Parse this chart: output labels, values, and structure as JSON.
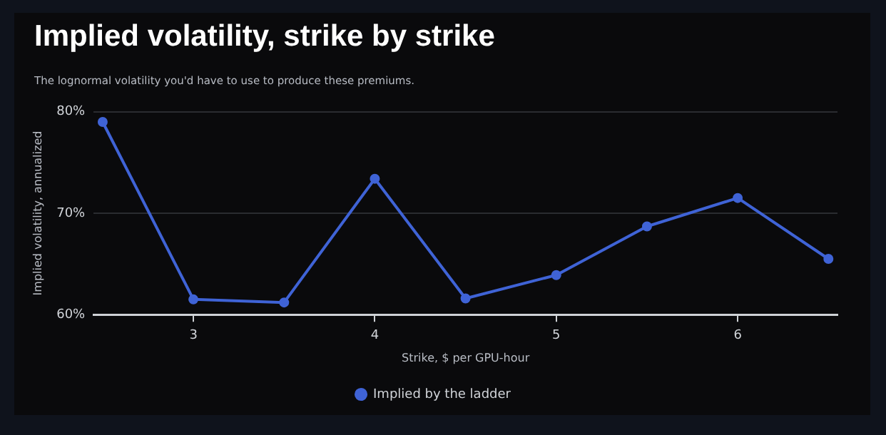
{
  "chart_data": {
    "type": "line",
    "title": "Implied volatility, strike by strike",
    "subtitle": "The lognormal volatility you'd have to use to produce these premiums.",
    "xlabel": "Strike, $ per GPU-hour",
    "ylabel": "Implied volatility, annualized",
    "x": [
      2.5,
      3,
      3.5,
      4,
      4.5,
      5,
      5.5,
      6,
      6.5
    ],
    "series": [
      {
        "name": "Implied by the ladder",
        "color": "#3f63d6",
        "values": [
          79.0,
          61.5,
          61.2,
          73.4,
          61.6,
          63.9,
          68.7,
          71.5,
          65.5
        ]
      }
    ],
    "xlim": [
      2.45,
      6.55
    ],
    "xticks": [
      3,
      4,
      5,
      6
    ],
    "ylim": [
      60,
      80
    ],
    "yticks": [
      {
        "value": 60,
        "label": "60%"
      },
      {
        "value": 70,
        "label": "70%"
      },
      {
        "value": 80,
        "label": "80%"
      }
    ],
    "grid": "y",
    "legend": "bottom",
    "marker": "circle",
    "line_style": "solid"
  }
}
